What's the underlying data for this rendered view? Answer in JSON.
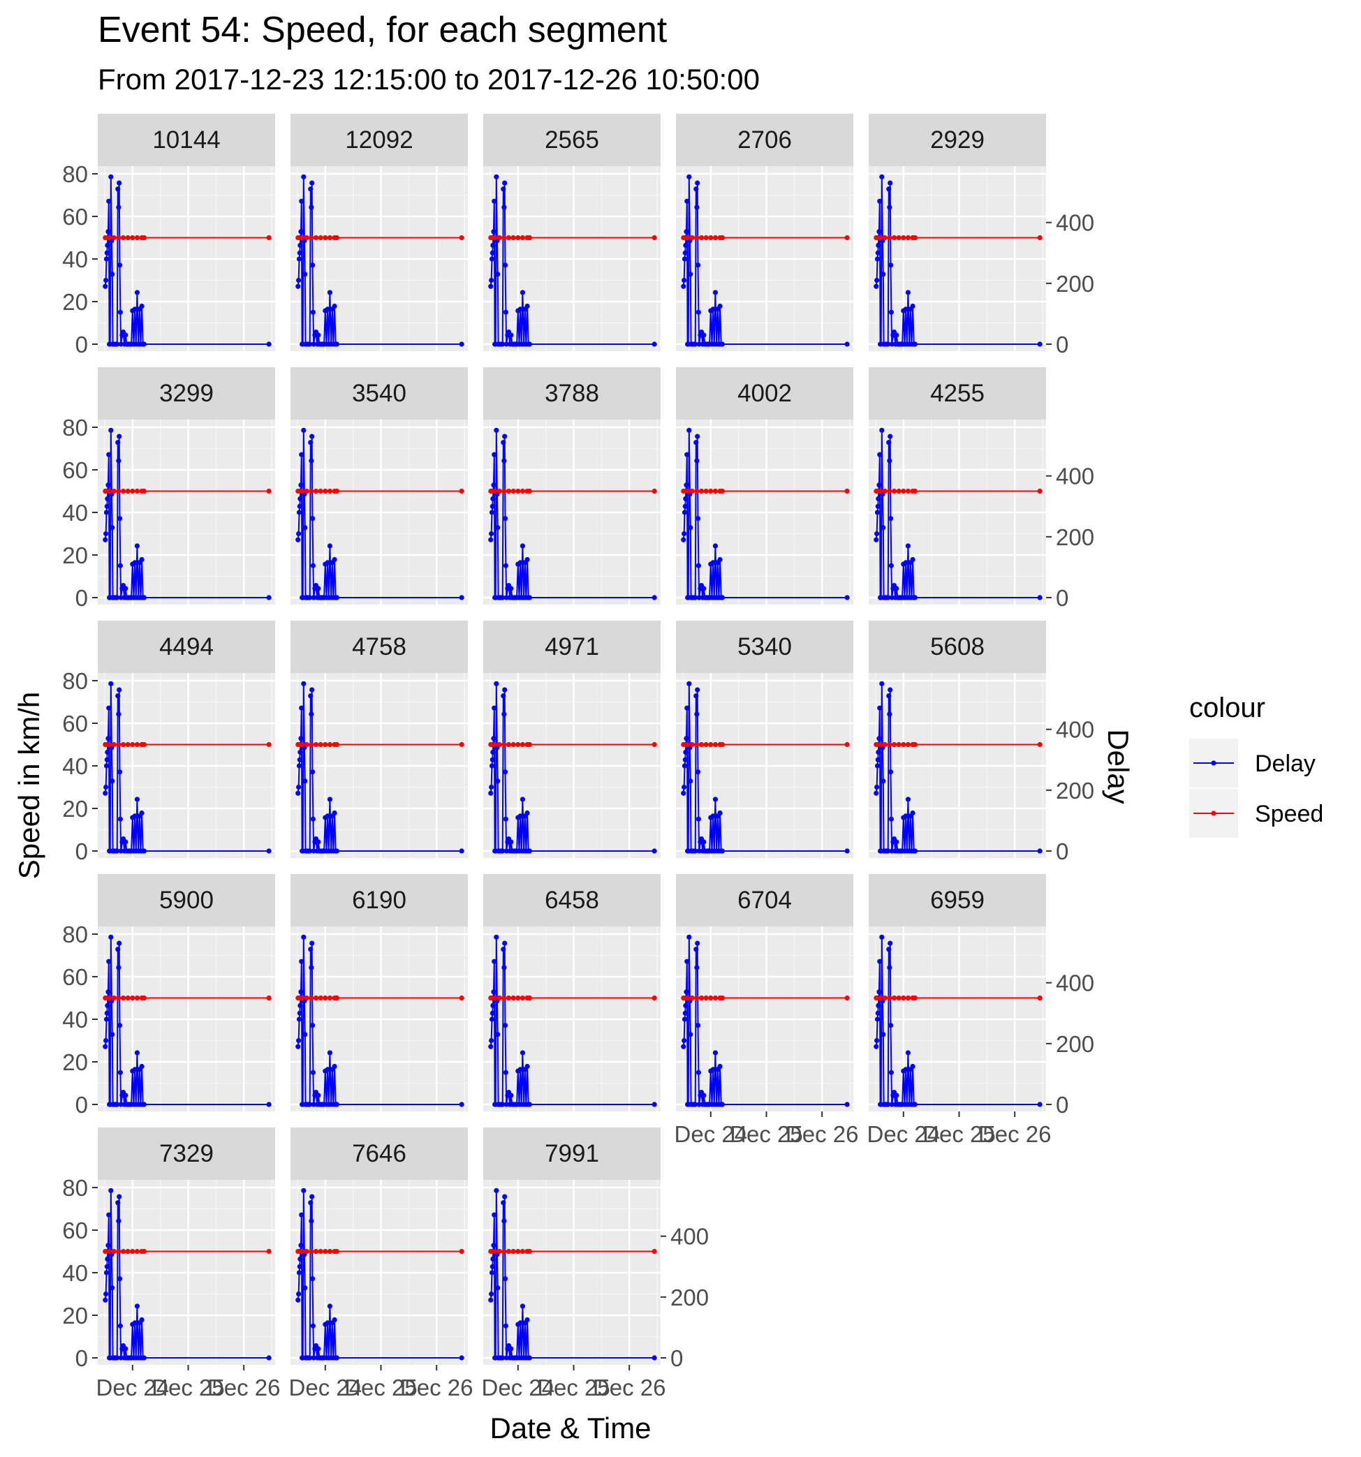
{
  "chart_data": {
    "type": "line",
    "title": "Event 54: Speed, for each segment",
    "subtitle": "From 2017-12-23 12:15:00 to 2017-12-26 10:50:00",
    "xlabel": "Date & Time",
    "ylabel": "Speed in km/h",
    "ylabel_right": "Delay",
    "x_ticks": [
      "Dec 24",
      "Dec 25",
      "Dec 26"
    ],
    "x_range": [
      "2017-12-23 09:00",
      "2017-12-26 13:30"
    ],
    "y_ticks": [
      0,
      20,
      40,
      60,
      80
    ],
    "ylim": [
      0,
      80
    ],
    "y2_ticks": [
      0,
      200,
      400
    ],
    "y2lim": [
      0,
      560
    ],
    "grid": true,
    "legend": {
      "title": "colour",
      "position": "right",
      "entries": [
        {
          "label": "Delay",
          "color": "#0000ff"
        },
        {
          "label": "Speed",
          "color": "#ff0000"
        }
      ]
    },
    "panels": [
      "10144",
      "12092",
      "2565",
      "2706",
      "2929",
      "3299",
      "3540",
      "3788",
      "4002",
      "4255",
      "4494",
      "4758",
      "4971",
      "5340",
      "5608",
      "5900",
      "6190",
      "6458",
      "6704",
      "6959",
      "7329",
      "7646",
      "7991"
    ],
    "series": [
      {
        "name": "Speed",
        "color": "#ff0000",
        "x": [
          "2017-12-23 12:15",
          "2017-12-23 14:00",
          "2017-12-23 16:00",
          "2017-12-23 18:00",
          "2017-12-23 20:00",
          "2017-12-23 22:00",
          "2017-12-24 00:00",
          "2017-12-24 02:00",
          "2017-12-24 04:00",
          "2017-12-24 05:00",
          "2017-12-26 10:50"
        ],
        "values": [
          50,
          50,
          50,
          50,
          50,
          50,
          50,
          50,
          50,
          50,
          50
        ]
      },
      {
        "name": "Delay",
        "color": "#0000ff",
        "x": [
          "2017-12-23 12:15",
          "2017-12-23 12:30",
          "2017-12-23 12:45",
          "2017-12-23 13:00",
          "2017-12-23 13:10",
          "2017-12-23 13:20",
          "2017-12-23 13:30",
          "2017-12-23 13:45",
          "2017-12-23 14:00",
          "2017-12-23 14:20",
          "2017-12-23 14:40",
          "2017-12-23 15:00",
          "2017-12-23 15:15",
          "2017-12-23 15:30",
          "2017-12-23 16:00",
          "2017-12-23 16:30",
          "2017-12-23 17:00",
          "2017-12-23 17:20",
          "2017-12-23 17:40",
          "2017-12-23 18:00",
          "2017-12-23 18:15",
          "2017-12-23 18:30",
          "2017-12-23 18:45",
          "2017-12-23 19:00",
          "2017-12-23 19:30",
          "2017-12-23 20:00",
          "2017-12-23 20:30",
          "2017-12-23 21:00",
          "2017-12-23 21:30",
          "2017-12-23 22:00",
          "2017-12-23 22:30",
          "2017-12-23 23:00",
          "2017-12-23 23:30",
          "2017-12-24 00:00",
          "2017-12-24 00:30",
          "2017-12-24 01:00",
          "2017-12-24 01:30",
          "2017-12-24 02:00",
          "2017-12-24 02:30",
          "2017-12-24 03:00",
          "2017-12-24 03:30",
          "2017-12-24 04:00",
          "2017-12-24 04:30",
          "2017-12-24 05:00",
          "2017-12-26 10:50"
        ],
        "values": [
          190,
          210,
          280,
          300,
          325,
          350,
          370,
          470,
          0,
          0,
          550,
          340,
          230,
          0,
          0,
          0,
          0,
          0,
          510,
          450,
          530,
          260,
          105,
          0,
          30,
          40,
          0,
          30,
          0,
          0,
          0,
          0,
          0,
          110,
          0,
          115,
          0,
          170,
          0,
          115,
          0,
          125,
          0,
          0,
          0
        ]
      }
    ]
  }
}
